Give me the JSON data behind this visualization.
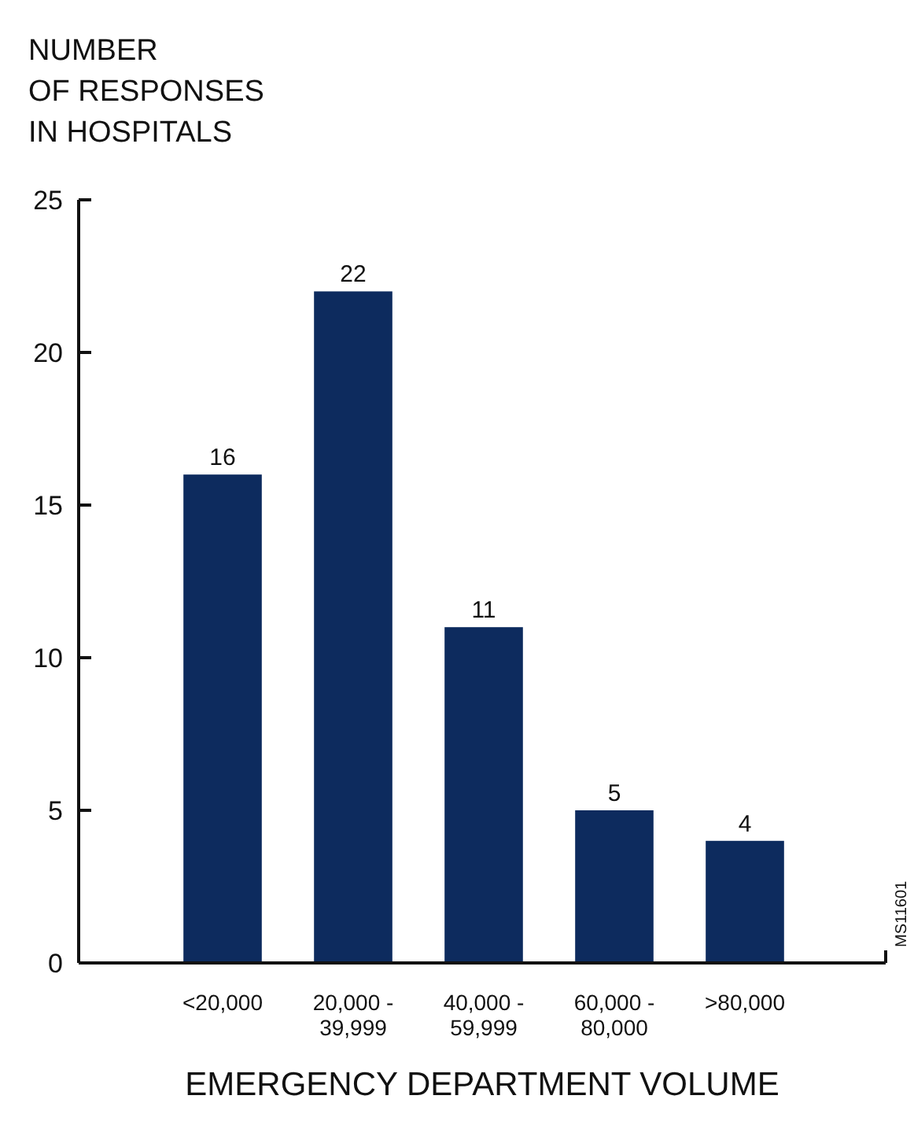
{
  "chart_data": {
    "type": "bar",
    "ylabel": "NUMBER OF RESPONSES IN HOSPITALS",
    "xlabel": "EMERGENCY DEPARTMENT VOLUME",
    "categories": [
      "<20,000",
      "20,000 - 39,999",
      "40,000 - 59,999",
      "60,000 - 80,000",
      ">80,000"
    ],
    "values": [
      16,
      22,
      11,
      5,
      4
    ],
    "color": "#0d2b5e",
    "data_labels": true,
    "grid": false,
    "ylim": [
      0,
      25
    ],
    "yticks": [
      0,
      5,
      10,
      15,
      20,
      25
    ],
    "annotations": [
      "MS11601"
    ]
  }
}
